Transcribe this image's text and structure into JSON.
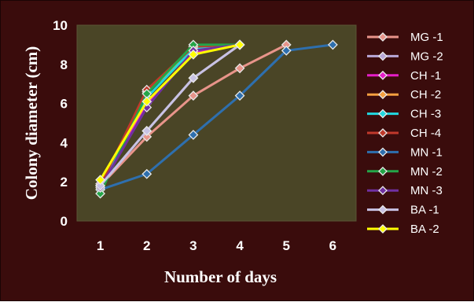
{
  "chart_data": {
    "type": "line",
    "title": "",
    "xlabel": "Number of days",
    "ylabel": "Colony diameter (cm)",
    "xlim": [
      0.5,
      6.5
    ],
    "ylim": [
      0,
      10
    ],
    "x_ticks": [
      1,
      2,
      3,
      4,
      5,
      6
    ],
    "y_ticks": [
      0,
      2,
      4,
      6,
      8,
      10
    ],
    "grid": false,
    "plot_background": "#4a4526",
    "background": "#3a0c0c",
    "legend": "right",
    "series": [
      {
        "name": "MG -1",
        "color": "#e8948a",
        "x": [
          1,
          2,
          3,
          4,
          5
        ],
        "values": [
          1.8,
          4.3,
          6.4,
          7.8,
          9.0
        ]
      },
      {
        "name": "MG -2",
        "color": "#b9a8d8",
        "x": [
          1,
          2,
          3,
          4
        ],
        "values": [
          1.8,
          4.6,
          7.3,
          9.0
        ]
      },
      {
        "name": "CH -1",
        "color": "#e61ec8",
        "x": [
          1,
          2,
          3,
          4
        ],
        "values": [
          1.9,
          6.0,
          8.6,
          9.0
        ]
      },
      {
        "name": "CH -2",
        "color": "#f4a040",
        "x": [
          1,
          2,
          3,
          4
        ],
        "values": [
          1.8,
          6.6,
          8.7,
          9.0
        ]
      },
      {
        "name": "CH -3",
        "color": "#22d8e0",
        "x": [
          1,
          2,
          3,
          4
        ],
        "values": [
          1.8,
          6.3,
          8.8,
          9.0
        ]
      },
      {
        "name": "CH -4",
        "color": "#c0392b",
        "x": [
          1,
          2,
          3,
          4
        ],
        "values": [
          1.8,
          6.7,
          8.9,
          9.0
        ]
      },
      {
        "name": "MN -1",
        "color": "#2e6fae",
        "x": [
          1,
          2,
          3,
          4,
          5,
          6
        ],
        "values": [
          1.6,
          2.4,
          4.4,
          6.4,
          8.7,
          9.0
        ]
      },
      {
        "name": "MN -2",
        "color": "#24a548",
        "x": [
          1,
          2,
          3,
          4
        ],
        "values": [
          1.4,
          6.5,
          9.0,
          9.0
        ]
      },
      {
        "name": "MN -3",
        "color": "#7030a0",
        "x": [
          1,
          2,
          3,
          4
        ],
        "values": [
          1.7,
          5.8,
          8.7,
          9.0
        ]
      },
      {
        "name": "BA -1",
        "color": "#c8c2e4",
        "x": [
          1,
          2,
          3,
          4
        ],
        "values": [
          1.8,
          4.6,
          7.3,
          9.0
        ]
      },
      {
        "name": "BA -2",
        "color": "#ffff00",
        "x": [
          1,
          2,
          3,
          4
        ],
        "values": [
          2.1,
          6.1,
          8.5,
          9.0
        ]
      }
    ]
  }
}
